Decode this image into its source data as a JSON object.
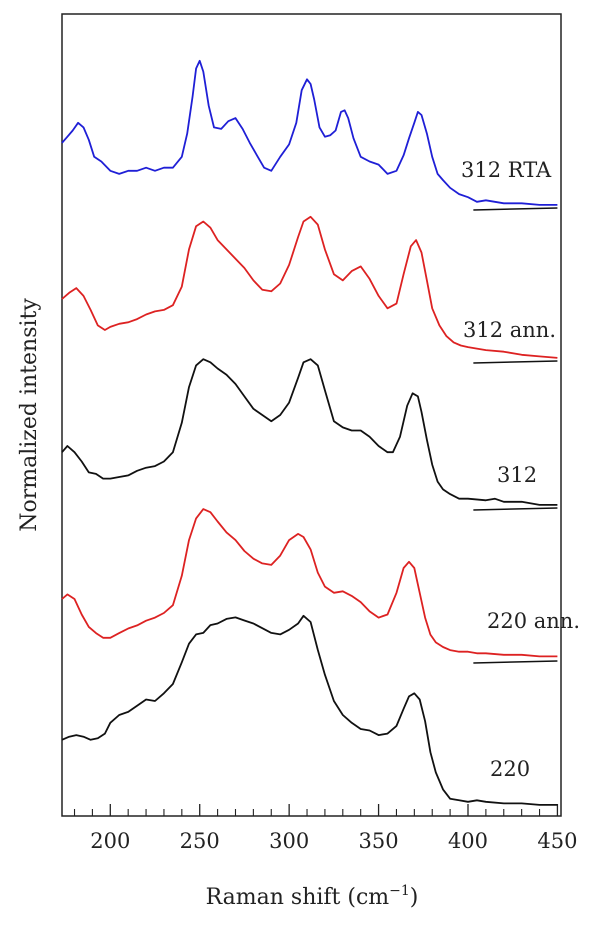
{
  "chart_data": {
    "type": "line",
    "title": "",
    "xlabel": "Raman shift (cm",
    "xlabel_sup": "−1",
    "xlabel_close": ")",
    "ylabel": "Normalized intensity",
    "xlim": [
      173,
      452
    ],
    "xticks": [
      200,
      250,
      300,
      350,
      400,
      450
    ],
    "xtick_labels": [
      "200",
      "250",
      "300",
      "350",
      "400",
      "450"
    ],
    "minor_xticks": [
      180,
      190,
      210,
      220,
      230,
      240,
      260,
      270,
      280,
      290,
      310,
      320,
      330,
      340,
      360,
      370,
      380,
      390,
      410,
      420,
      430,
      440
    ],
    "y_normalized": true,
    "grid": false,
    "series": [
      {
        "name": "312 RTA",
        "color": "#1f1fd6",
        "offset": 4,
        "baseline_segment": [
          403,
          450
        ],
        "x": [
          173,
          176,
          179,
          182,
          185,
          188,
          191,
          195,
          200,
          205,
          210,
          215,
          220,
          225,
          230,
          235,
          240,
          243,
          246,
          248,
          250,
          252,
          255,
          258,
          262,
          266,
          270,
          274,
          278,
          282,
          286,
          290,
          295,
          300,
          304,
          307,
          310,
          312,
          314,
          317,
          320,
          323,
          326,
          329,
          331,
          333,
          336,
          340,
          345,
          350,
          355,
          360,
          364,
          367,
          370,
          372,
          374,
          377,
          380,
          383,
          386,
          390,
          395,
          400,
          405,
          410,
          420,
          430,
          440,
          450
        ],
        "y": [
          0.42,
          0.46,
          0.5,
          0.55,
          0.52,
          0.44,
          0.33,
          0.3,
          0.24,
          0.22,
          0.24,
          0.24,
          0.26,
          0.24,
          0.26,
          0.26,
          0.33,
          0.48,
          0.72,
          0.9,
          0.95,
          0.88,
          0.66,
          0.52,
          0.51,
          0.56,
          0.58,
          0.51,
          0.42,
          0.34,
          0.26,
          0.24,
          0.33,
          0.41,
          0.55,
          0.76,
          0.83,
          0.8,
          0.7,
          0.52,
          0.46,
          0.47,
          0.5,
          0.62,
          0.63,
          0.58,
          0.45,
          0.33,
          0.3,
          0.28,
          0.22,
          0.24,
          0.34,
          0.45,
          0.55,
          0.62,
          0.6,
          0.48,
          0.33,
          0.22,
          0.18,
          0.13,
          0.09,
          0.07,
          0.04,
          0.05,
          0.03,
          0.03,
          0.02,
          0.02
        ]
      },
      {
        "name": "312 ann.",
        "color": "#dd2222",
        "offset": 3,
        "baseline_segment": [
          403,
          450
        ],
        "x": [
          173,
          177,
          181,
          185,
          189,
          193,
          197,
          200,
          205,
          210,
          215,
          220,
          225,
          230,
          235,
          240,
          244,
          248,
          252,
          256,
          260,
          265,
          270,
          275,
          280,
          285,
          290,
          295,
          300,
          305,
          308,
          312,
          316,
          320,
          325,
          330,
          335,
          340,
          345,
          350,
          355,
          360,
          364,
          368,
          371,
          374,
          377,
          380,
          384,
          388,
          392,
          396,
          400,
          405,
          410,
          420,
          430,
          440,
          450
        ],
        "y": [
          0.4,
          0.44,
          0.47,
          0.42,
          0.33,
          0.23,
          0.2,
          0.22,
          0.24,
          0.25,
          0.27,
          0.3,
          0.32,
          0.33,
          0.36,
          0.48,
          0.72,
          0.87,
          0.9,
          0.86,
          0.78,
          0.72,
          0.66,
          0.6,
          0.52,
          0.46,
          0.45,
          0.5,
          0.62,
          0.8,
          0.9,
          0.93,
          0.88,
          0.72,
          0.56,
          0.52,
          0.58,
          0.61,
          0.53,
          0.42,
          0.34,
          0.37,
          0.56,
          0.74,
          0.78,
          0.7,
          0.52,
          0.34,
          0.23,
          0.16,
          0.12,
          0.1,
          0.09,
          0.08,
          0.07,
          0.06,
          0.04,
          0.03,
          0.02
        ]
      },
      {
        "name": "312",
        "color": "#111111",
        "offset": 2,
        "baseline_segment": [
          403,
          450
        ],
        "x": [
          173,
          176,
          180,
          184,
          188,
          192,
          196,
          200,
          205,
          210,
          215,
          220,
          225,
          230,
          235,
          240,
          244,
          248,
          252,
          256,
          260,
          265,
          270,
          275,
          280,
          285,
          290,
          295,
          300,
          305,
          308,
          312,
          316,
          320,
          325,
          330,
          335,
          340,
          345,
          350,
          355,
          358,
          362,
          366,
          369,
          372,
          374,
          377,
          380,
          383,
          386,
          390,
          395,
          400,
          410,
          415,
          420,
          430,
          440,
          450
        ],
        "y": [
          0.36,
          0.4,
          0.36,
          0.3,
          0.23,
          0.22,
          0.19,
          0.19,
          0.2,
          0.21,
          0.24,
          0.26,
          0.27,
          0.3,
          0.36,
          0.55,
          0.78,
          0.92,
          0.96,
          0.94,
          0.9,
          0.86,
          0.8,
          0.72,
          0.64,
          0.6,
          0.56,
          0.6,
          0.68,
          0.84,
          0.94,
          0.96,
          0.92,
          0.76,
          0.56,
          0.52,
          0.5,
          0.5,
          0.46,
          0.4,
          0.36,
          0.36,
          0.46,
          0.66,
          0.74,
          0.72,
          0.62,
          0.44,
          0.28,
          0.17,
          0.12,
          0.09,
          0.06,
          0.06,
          0.05,
          0.06,
          0.04,
          0.04,
          0.02,
          0.02
        ]
      },
      {
        "name": "220 ann.",
        "color": "#dd2222",
        "offset": 1,
        "baseline_segment": [
          403,
          450
        ],
        "x": [
          173,
          176,
          180,
          184,
          188,
          192,
          196,
          200,
          205,
          210,
          215,
          220,
          225,
          230,
          235,
          240,
          244,
          248,
          252,
          256,
          260,
          265,
          270,
          275,
          280,
          285,
          290,
          295,
          300,
          305,
          308,
          312,
          316,
          320,
          325,
          330,
          335,
          340,
          345,
          350,
          355,
          360,
          364,
          367,
          370,
          373,
          376,
          379,
          382,
          386,
          390,
          395,
          400,
          405,
          410,
          420,
          430,
          440,
          450
        ],
        "y": [
          0.4,
          0.43,
          0.4,
          0.3,
          0.22,
          0.18,
          0.15,
          0.15,
          0.18,
          0.21,
          0.23,
          0.26,
          0.28,
          0.31,
          0.36,
          0.55,
          0.78,
          0.92,
          0.98,
          0.96,
          0.9,
          0.83,
          0.78,
          0.71,
          0.66,
          0.63,
          0.62,
          0.68,
          0.78,
          0.82,
          0.8,
          0.72,
          0.57,
          0.48,
          0.44,
          0.45,
          0.42,
          0.38,
          0.32,
          0.28,
          0.3,
          0.44,
          0.6,
          0.64,
          0.6,
          0.44,
          0.28,
          0.17,
          0.12,
          0.09,
          0.07,
          0.06,
          0.06,
          0.05,
          0.05,
          0.04,
          0.04,
          0.03,
          0.03
        ]
      },
      {
        "name": "220",
        "color": "#111111",
        "offset": 0,
        "x": [
          173,
          177,
          181,
          185,
          189,
          193,
          197,
          200,
          205,
          210,
          215,
          220,
          225,
          230,
          235,
          240,
          244,
          248,
          252,
          256,
          260,
          265,
          270,
          275,
          280,
          285,
          290,
          295,
          300,
          305,
          308,
          312,
          316,
          320,
          325,
          330,
          335,
          340,
          345,
          350,
          355,
          360,
          364,
          367,
          370,
          373,
          376,
          379,
          382,
          386,
          390,
          395,
          400,
          405,
          410,
          420,
          430,
          440,
          450
        ],
        "y": [
          0.44,
          0.46,
          0.47,
          0.46,
          0.44,
          0.45,
          0.48,
          0.55,
          0.6,
          0.62,
          0.66,
          0.7,
          0.69,
          0.74,
          0.8,
          0.94,
          1.06,
          1.12,
          1.13,
          1.18,
          1.19,
          1.22,
          1.23,
          1.21,
          1.19,
          1.16,
          1.13,
          1.12,
          1.15,
          1.19,
          1.24,
          1.2,
          1.02,
          0.86,
          0.69,
          0.6,
          0.55,
          0.51,
          0.5,
          0.47,
          0.48,
          0.53,
          0.64,
          0.72,
          0.74,
          0.7,
          0.56,
          0.36,
          0.23,
          0.12,
          0.06,
          0.05,
          0.04,
          0.05,
          0.04,
          0.03,
          0.03,
          0.02,
          0.02
        ]
      }
    ]
  }
}
